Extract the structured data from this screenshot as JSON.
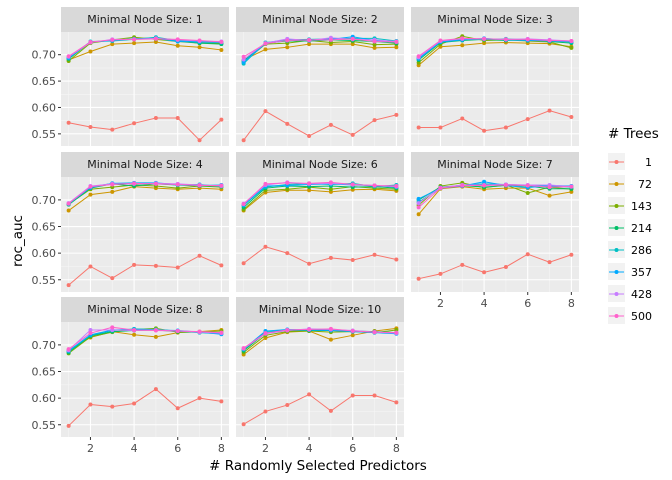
{
  "chart_data": {
    "type": "line",
    "x_label": "# Randomly Selected Predictors",
    "y_label": "roc_auc",
    "x_ticks": [
      2,
      4,
      6,
      8
    ],
    "y_ticks": [
      0.55,
      0.6,
      0.65,
      0.7
    ],
    "y_tick_labels": [
      "0.55",
      "0.60",
      "0.65",
      "0.70"
    ],
    "xlim": [
      0.65,
      8.35
    ],
    "ylim": [
      0.527,
      0.743
    ],
    "legend": {
      "title": "# Trees",
      "position": "right",
      "entries": [
        "1",
        "72",
        "143",
        "214",
        "286",
        "357",
        "428",
        "500"
      ]
    },
    "series_colors": [
      "#F8766D",
      "#CD9600",
      "#7CAE00",
      "#00BE67",
      "#00BFC4",
      "#00A9FF",
      "#C77CFF",
      "#FF61CC"
    ],
    "x": [
      1,
      2,
      3,
      4,
      5,
      6,
      7,
      8
    ],
    "panels": [
      {
        "strip": "Minimal Node Size: 1",
        "series": [
          {
            "name": "1",
            "values": [
              0.571,
              0.563,
              0.558,
              0.57,
              0.58,
              0.58,
              0.538,
              0.577
            ]
          },
          {
            "name": "72",
            "values": [
              0.69,
              0.706,
              0.72,
              0.722,
              0.724,
              0.717,
              0.714,
              0.709
            ]
          },
          {
            "name": "143",
            "values": [
              0.688,
              0.722,
              0.728,
              0.733,
              0.729,
              0.725,
              0.722,
              0.722
            ]
          },
          {
            "name": "214",
            "values": [
              0.692,
              0.724,
              0.727,
              0.73,
              0.732,
              0.726,
              0.722,
              0.72
            ]
          },
          {
            "name": "286",
            "values": [
              0.693,
              0.725,
              0.726,
              0.729,
              0.733,
              0.727,
              0.725,
              0.724
            ]
          },
          {
            "name": "357",
            "values": [
              0.694,
              0.724,
              0.727,
              0.73,
              0.731,
              0.725,
              0.724,
              0.723
            ]
          },
          {
            "name": "428",
            "values": [
              0.696,
              0.723,
              0.729,
              0.729,
              0.731,
              0.728,
              0.726,
              0.725
            ]
          },
          {
            "name": "500",
            "values": [
              0.697,
              0.724,
              0.728,
              0.729,
              0.73,
              0.729,
              0.727,
              0.724
            ]
          }
        ]
      },
      {
        "strip": "Minimal Node Size: 2",
        "series": [
          {
            "name": "1",
            "values": [
              0.538,
              0.593,
              0.569,
              0.546,
              0.567,
              0.548,
              0.576,
              0.586
            ]
          },
          {
            "name": "72",
            "values": [
              0.69,
              0.71,
              0.714,
              0.72,
              0.72,
              0.72,
              0.713,
              0.714
            ]
          },
          {
            "name": "143",
            "values": [
              0.686,
              0.72,
              0.722,
              0.727,
              0.723,
              0.725,
              0.719,
              0.72
            ]
          },
          {
            "name": "214",
            "values": [
              0.688,
              0.722,
              0.726,
              0.726,
              0.728,
              0.727,
              0.725,
              0.722
            ]
          },
          {
            "name": "286",
            "values": [
              0.683,
              0.723,
              0.728,
              0.729,
              0.73,
              0.731,
              0.731,
              0.726
            ]
          },
          {
            "name": "357",
            "values": [
              0.686,
              0.721,
              0.727,
              0.728,
              0.729,
              0.734,
              0.727,
              0.724
            ]
          },
          {
            "name": "428",
            "values": [
              0.691,
              0.722,
              0.73,
              0.727,
              0.732,
              0.729,
              0.728,
              0.725
            ]
          },
          {
            "name": "500",
            "values": [
              0.696,
              0.721,
              0.727,
              0.728,
              0.728,
              0.73,
              0.725,
              0.724
            ]
          }
        ]
      },
      {
        "strip": "Minimal Node Size: 3",
        "series": [
          {
            "name": "1",
            "values": [
              0.562,
              0.562,
              0.579,
              0.556,
              0.562,
              0.578,
              0.594,
              0.582
            ]
          },
          {
            "name": "72",
            "values": [
              0.68,
              0.715,
              0.718,
              0.722,
              0.723,
              0.722,
              0.721,
              0.715
            ]
          },
          {
            "name": "143",
            "values": [
              0.685,
              0.72,
              0.735,
              0.727,
              0.728,
              0.726,
              0.724,
              0.713
            ]
          },
          {
            "name": "214",
            "values": [
              0.69,
              0.723,
              0.727,
              0.729,
              0.727,
              0.729,
              0.725,
              0.722
            ]
          },
          {
            "name": "286",
            "values": [
              0.694,
              0.725,
              0.729,
              0.729,
              0.73,
              0.728,
              0.726,
              0.724
            ]
          },
          {
            "name": "357",
            "values": [
              0.692,
              0.724,
              0.728,
              0.731,
              0.728,
              0.727,
              0.726,
              0.725
            ]
          },
          {
            "name": "428",
            "values": [
              0.695,
              0.726,
              0.73,
              0.73,
              0.729,
              0.73,
              0.728,
              0.726
            ]
          },
          {
            "name": "500",
            "values": [
              0.697,
              0.727,
              0.731,
              0.73,
              0.729,
              0.729,
              0.727,
              0.726
            ]
          }
        ]
      },
      {
        "strip": "Minimal Node Size: 4",
        "series": [
          {
            "name": "1",
            "values": [
              0.54,
              0.575,
              0.553,
              0.578,
              0.576,
              0.573,
              0.595,
              0.577
            ]
          },
          {
            "name": "72",
            "values": [
              0.68,
              0.71,
              0.715,
              0.725,
              0.722,
              0.72,
              0.722,
              0.72
            ]
          },
          {
            "name": "143",
            "values": [
              0.692,
              0.72,
              0.724,
              0.728,
              0.726,
              0.722,
              0.726,
              0.724
            ]
          },
          {
            "name": "214",
            "values": [
              0.691,
              0.722,
              0.73,
              0.726,
              0.73,
              0.728,
              0.726,
              0.726
            ]
          },
          {
            "name": "286",
            "values": [
              0.692,
              0.724,
              0.731,
              0.73,
              0.731,
              0.728,
              0.729,
              0.725
            ]
          },
          {
            "name": "357",
            "values": [
              0.693,
              0.723,
              0.731,
              0.732,
              0.732,
              0.729,
              0.727,
              0.728
            ]
          },
          {
            "name": "428",
            "values": [
              0.694,
              0.726,
              0.73,
              0.73,
              0.731,
              0.73,
              0.728,
              0.726
            ]
          },
          {
            "name": "500",
            "values": [
              0.693,
              0.725,
              0.729,
              0.731,
              0.73,
              0.729,
              0.727,
              0.727
            ]
          }
        ]
      },
      {
        "strip": "Minimal Node Size: 6",
        "series": [
          {
            "name": "1",
            "values": [
              0.581,
              0.612,
              0.6,
              0.58,
              0.591,
              0.587,
              0.597,
              0.588
            ]
          },
          {
            "name": "72",
            "values": [
              0.68,
              0.714,
              0.718,
              0.718,
              0.715,
              0.719,
              0.72,
              0.717
            ]
          },
          {
            "name": "143",
            "values": [
              0.682,
              0.718,
              0.72,
              0.724,
              0.72,
              0.725,
              0.722,
              0.72
            ]
          },
          {
            "name": "214",
            "values": [
              0.686,
              0.722,
              0.726,
              0.725,
              0.726,
              0.724,
              0.725,
              0.722
            ]
          },
          {
            "name": "286",
            "values": [
              0.69,
              0.724,
              0.729,
              0.731,
              0.729,
              0.731,
              0.725,
              0.728
            ]
          },
          {
            "name": "357",
            "values": [
              0.69,
              0.726,
              0.727,
              0.729,
              0.73,
              0.728,
              0.727,
              0.724
            ]
          },
          {
            "name": "428",
            "values": [
              0.693,
              0.728,
              0.733,
              0.73,
              0.731,
              0.729,
              0.727,
              0.725
            ]
          },
          {
            "name": "500",
            "values": [
              0.692,
              0.73,
              0.732,
              0.731,
              0.733,
              0.729,
              0.727,
              0.726
            ]
          }
        ]
      },
      {
        "strip": "Minimal Node Size: 7",
        "series": [
          {
            "name": "1",
            "values": [
              0.552,
              0.561,
              0.578,
              0.564,
              0.574,
              0.598,
              0.583,
              0.597
            ]
          },
          {
            "name": "72",
            "values": [
              0.673,
              0.721,
              0.725,
              0.72,
              0.722,
              0.722,
              0.708,
              0.715
            ]
          },
          {
            "name": "143",
            "values": [
              0.69,
              0.726,
              0.732,
              0.723,
              0.728,
              0.713,
              0.724,
              0.72
            ]
          },
          {
            "name": "214",
            "values": [
              0.7,
              0.724,
              0.727,
              0.724,
              0.727,
              0.726,
              0.721,
              0.721
            ]
          },
          {
            "name": "286",
            "values": [
              0.696,
              0.722,
              0.728,
              0.73,
              0.729,
              0.727,
              0.726,
              0.724
            ]
          },
          {
            "name": "357",
            "values": [
              0.702,
              0.722,
              0.726,
              0.734,
              0.727,
              0.723,
              0.727,
              0.726
            ]
          },
          {
            "name": "428",
            "values": [
              0.694,
              0.723,
              0.728,
              0.728,
              0.729,
              0.728,
              0.728,
              0.725
            ]
          },
          {
            "name": "500",
            "values": [
              0.686,
              0.722,
              0.727,
              0.727,
              0.728,
              0.727,
              0.724,
              0.725
            ]
          }
        ]
      },
      {
        "strip": "Minimal Node Size: 8",
        "series": [
          {
            "name": "1",
            "values": [
              0.548,
              0.588,
              0.584,
              0.59,
              0.617,
              0.581,
              0.6,
              0.594
            ]
          },
          {
            "name": "72",
            "values": [
              0.69,
              0.714,
              0.725,
              0.719,
              0.715,
              0.723,
              0.725,
              0.728
            ]
          },
          {
            "name": "143",
            "values": [
              0.684,
              0.715,
              0.724,
              0.729,
              0.731,
              0.724,
              0.724,
              0.726
            ]
          },
          {
            "name": "214",
            "values": [
              0.686,
              0.717,
              0.725,
              0.727,
              0.728,
              0.725,
              0.724,
              0.722
            ]
          },
          {
            "name": "286",
            "values": [
              0.688,
              0.718,
              0.727,
              0.73,
              0.729,
              0.726,
              0.723,
              0.721
            ]
          },
          {
            "name": "357",
            "values": [
              0.689,
              0.719,
              0.728,
              0.729,
              0.728,
              0.727,
              0.724,
              0.72
            ]
          },
          {
            "name": "428",
            "values": [
              0.69,
              0.728,
              0.728,
              0.727,
              0.728,
              0.726,
              0.724,
              0.722
            ]
          },
          {
            "name": "500",
            "values": [
              0.692,
              0.722,
              0.733,
              0.728,
              0.727,
              0.726,
              0.725,
              0.723
            ]
          }
        ]
      },
      {
        "strip": "Minimal Node Size: 10",
        "series": [
          {
            "name": "1",
            "values": [
              0.551,
              0.575,
              0.587,
              0.607,
              0.576,
              0.605,
              0.605,
              0.592
            ]
          },
          {
            "name": "72",
            "values": [
              0.682,
              0.713,
              0.724,
              0.726,
              0.71,
              0.718,
              0.726,
              0.731
            ]
          },
          {
            "name": "143",
            "values": [
              0.686,
              0.718,
              0.725,
              0.726,
              0.724,
              0.725,
              0.723,
              0.728
            ]
          },
          {
            "name": "214",
            "values": [
              0.689,
              0.722,
              0.727,
              0.727,
              0.727,
              0.726,
              0.725,
              0.723
            ]
          },
          {
            "name": "286",
            "values": [
              0.691,
              0.724,
              0.728,
              0.729,
              0.728,
              0.726,
              0.724,
              0.722
            ]
          },
          {
            "name": "357",
            "values": [
              0.692,
              0.726,
              0.729,
              0.728,
              0.727,
              0.725,
              0.723,
              0.721
            ]
          },
          {
            "name": "428",
            "values": [
              0.693,
              0.721,
              0.727,
              0.73,
              0.729,
              0.727,
              0.724,
              0.722
            ]
          },
          {
            "name": "500",
            "values": [
              0.694,
              0.722,
              0.728,
              0.729,
              0.73,
              0.726,
              0.724,
              0.723
            ]
          }
        ]
      }
    ]
  }
}
